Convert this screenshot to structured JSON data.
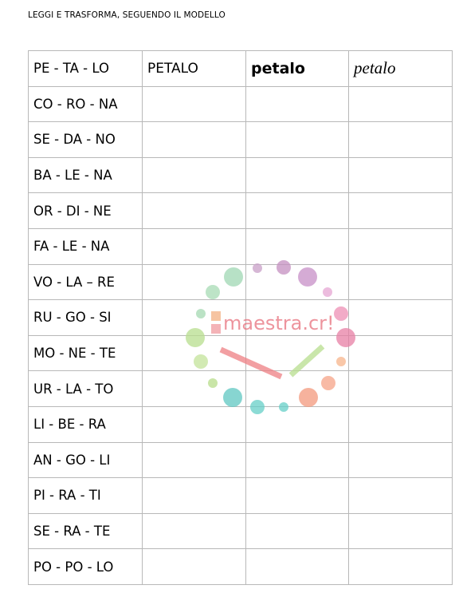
{
  "header": {
    "title": "LEGGI E TRASFORMA, SEGUENDO IL MODELLO"
  },
  "table": {
    "rows": [
      [
        "PE - TA - LO",
        "PETALO",
        "petalo",
        "petalo"
      ],
      [
        "CO - RO - NA"
      ],
      [
        "SE - DA - NO"
      ],
      [
        "BA - LE - NA"
      ],
      [
        "OR - DI - NE"
      ],
      [
        "FA - LE - NA"
      ],
      [
        "VO - LA – RE"
      ],
      [
        "RU - GO - SI"
      ],
      [
        "MO - NE - TE"
      ],
      [
        "UR - LA - TO"
      ],
      [
        "LI - BE - RA"
      ],
      [
        "AN - GO - LI"
      ],
      [
        "PI - RA - TI"
      ],
      [
        "SE - RA - TE"
      ],
      [
        "PO - PO - LO"
      ]
    ]
  },
  "watermark": {
    "text": "maestra.cr!"
  }
}
